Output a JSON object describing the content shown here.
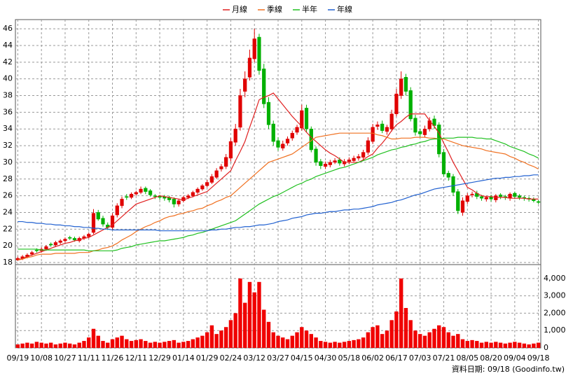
{
  "chart_data": [
    {
      "type": "candlestick",
      "up_color": "#e00000",
      "down_color": "#00b000",
      "grid": true,
      "ylim": [
        17.75,
        47.1
      ],
      "yticks": [
        18,
        20,
        22,
        24,
        26,
        28,
        30,
        32,
        34,
        36,
        38,
        40,
        42,
        44,
        46
      ],
      "open": [
        18.3,
        18.5,
        18.7,
        19.0,
        19.5,
        19.4,
        19.6,
        20.2,
        20.1,
        20.4,
        20.6,
        21.0,
        20.9,
        20.6,
        20.9,
        21.1,
        21.6,
        24.0,
        23.3,
        22.5,
        22.2,
        23.7,
        24.8,
        25.9,
        25.8,
        26.2,
        26.4,
        26.9,
        26.6,
        26.0,
        25.9,
        25.9,
        25.8,
        25.6,
        25.0,
        25.4,
        25.8,
        26.0,
        26.4,
        26.8,
        27.2,
        27.6,
        28.2,
        29.2,
        29.5,
        30.5,
        32.4,
        34.2,
        38.5,
        40.2,
        42.4,
        45.0,
        41.2,
        37.2,
        34.6,
        32.6,
        31.7,
        32.3,
        32.9,
        33.6,
        34.1,
        36.5,
        34.0,
        31.6,
        30.1,
        29.5,
        29.7,
        30.0,
        30.3,
        29.8,
        30.1,
        30.2,
        30.5,
        30.6,
        31.2,
        32.5,
        34.3,
        34.6,
        33.7,
        34.0,
        35.8,
        38.0,
        40.2,
        38.6,
        35.3,
        33.7,
        33.3,
        34.0,
        35.2,
        34.5,
        31.2,
        28.7,
        28.3,
        26.5,
        24.0,
        25.3,
        26.1,
        26.3,
        25.9,
        25.6,
        25.9,
        25.5,
        26.1,
        25.9,
        25.7,
        26.3,
        26.0,
        25.8,
        25.7,
        25.6,
        25.3
      ],
      "high": [
        18.7,
        18.9,
        19.1,
        19.4,
        19.7,
        19.8,
        20.1,
        20.4,
        20.6,
        20.8,
        21.0,
        21.2,
        21.1,
        21.1,
        21.3,
        21.6,
        24.4,
        24.3,
        23.6,
        22.8,
        23.9,
        25.1,
        25.9,
        26.2,
        26.4,
        26.6,
        27.1,
        27.1,
        26.8,
        26.2,
        26.1,
        26.1,
        26.0,
        25.8,
        25.6,
        26.0,
        26.2,
        26.6,
        27.0,
        27.4,
        27.9,
        28.6,
        29.3,
        29.8,
        31.0,
        32.9,
        34.6,
        38.8,
        40.9,
        43.5,
        46.0,
        45.4,
        41.8,
        37.8,
        35.0,
        33.0,
        32.6,
        33.1,
        33.8,
        34.5,
        36.9,
        36.9,
        34.3,
        31.9,
        30.4,
        30.1,
        30.3,
        30.5,
        30.6,
        30.4,
        30.6,
        30.8,
        31.0,
        31.5,
        33.0,
        34.6,
        34.9,
        35.0,
        34.5,
        36.3,
        38.8,
        40.9,
        40.6,
        39.0,
        35.7,
        34.0,
        34.4,
        35.4,
        35.6,
        34.8,
        31.6,
        29.0,
        28.6,
        26.8,
        25.8,
        26.3,
        26.5,
        26.6,
        26.1,
        26.0,
        26.1,
        26.2,
        26.3,
        26.1,
        26.4,
        26.5,
        26.2,
        26.0,
        25.9,
        25.8,
        25.5
      ],
      "low": [
        18.2,
        18.3,
        18.5,
        18.8,
        19.2,
        19.2,
        19.4,
        19.9,
        19.9,
        20.2,
        20.4,
        20.7,
        20.5,
        20.4,
        20.7,
        20.9,
        21.4,
        23.0,
        22.3,
        21.9,
        21.9,
        23.4,
        24.5,
        25.5,
        25.6,
        26.0,
        26.2,
        26.2,
        25.9,
        25.6,
        25.5,
        25.4,
        25.2,
        24.6,
        24.7,
        25.2,
        25.6,
        25.8,
        26.2,
        26.6,
        27.0,
        27.4,
        28.0,
        28.9,
        29.2,
        30.1,
        32.0,
        33.8,
        37.8,
        39.8,
        42.0,
        40.5,
        36.5,
        34.0,
        32.0,
        31.4,
        31.4,
        32.0,
        32.6,
        33.3,
        33.8,
        33.6,
        31.2,
        29.6,
        29.2,
        29.2,
        29.4,
        29.8,
        29.6,
        29.5,
        29.8,
        30.0,
        30.2,
        30.3,
        30.9,
        32.2,
        33.9,
        33.5,
        33.3,
        33.7,
        35.5,
        37.6,
        38.0,
        34.9,
        33.2,
        33.0,
        33.0,
        33.7,
        34.0,
        30.6,
        28.3,
        27.8,
        26.0,
        23.8,
        23.6,
        25.0,
        25.8,
        25.6,
        25.4,
        25.3,
        25.3,
        25.2,
        25.6,
        25.5,
        25.4,
        25.6,
        25.5,
        25.4,
        25.3,
        25.2,
        25.0
      ],
      "close": [
        18.5,
        18.7,
        18.9,
        19.2,
        19.4,
        19.6,
        19.9,
        20.1,
        20.4,
        20.6,
        20.8,
        20.9,
        20.7,
        20.9,
        21.1,
        21.4,
        23.9,
        23.2,
        22.6,
        22.2,
        23.6,
        24.8,
        25.6,
        25.8,
        26.2,
        26.4,
        26.8,
        26.5,
        26.1,
        25.9,
        25.8,
        25.7,
        25.5,
        25.0,
        25.4,
        25.8,
        26.0,
        26.4,
        26.8,
        27.2,
        27.6,
        28.3,
        29.0,
        29.5,
        30.6,
        32.5,
        34.0,
        38.0,
        40.0,
        42.5,
        44.8,
        41.0,
        37.0,
        34.5,
        32.5,
        31.8,
        32.2,
        32.8,
        33.5,
        34.2,
        36.2,
        34.0,
        31.5,
        30.0,
        29.6,
        29.8,
        30.0,
        30.2,
        29.9,
        30.1,
        30.3,
        30.5,
        30.7,
        31.2,
        32.6,
        34.2,
        34.5,
        33.8,
        34.2,
        35.8,
        38.2,
        40.0,
        38.5,
        35.2,
        33.6,
        33.4,
        34.0,
        35.0,
        34.4,
        31.0,
        28.6,
        28.2,
        26.4,
        24.2,
        25.4,
        26.0,
        26.2,
        25.9,
        25.7,
        25.8,
        25.6,
        26.0,
        25.9,
        25.8,
        26.2,
        25.9,
        25.8,
        25.7,
        25.6,
        25.4,
        25.2
      ],
      "series": [
        {
          "name": "月線",
          "color": "#e02020",
          "values": [
            18.3,
            18.5,
            18.7,
            18.9,
            19.1,
            19.3,
            19.5,
            19.7,
            19.9,
            20.1,
            20.3,
            20.4,
            20.6,
            20.7,
            20.9,
            21.0,
            21.3,
            21.6,
            21.9,
            22.2,
            22.5,
            23.0,
            23.5,
            24.0,
            24.5,
            25.0,
            25.2,
            25.4,
            25.6,
            25.8,
            26.0,
            25.9,
            25.8,
            25.7,
            25.6,
            25.5,
            25.7,
            25.9,
            26.1,
            26.3,
            26.5,
            27.0,
            27.5,
            28.0,
            28.5,
            29.0,
            30.2,
            31.3,
            32.5,
            34.2,
            35.8,
            37.5,
            37.8,
            38.0,
            38.3,
            37.6,
            36.9,
            36.2,
            35.5,
            34.9,
            34.3,
            33.6,
            33.0,
            32.5,
            32.0,
            31.5,
            31.1,
            30.8,
            30.4,
            30.0,
            30.0,
            30.0,
            30.0,
            30.3,
            30.7,
            31.0,
            31.7,
            32.3,
            33.0,
            33.8,
            34.5,
            34.9,
            35.4,
            35.8,
            35.8,
            35.8,
            35.8,
            35.0,
            34.3,
            33.5,
            32.3,
            31.2,
            30.0,
            29.0,
            28.0,
            27.0,
            26.7,
            26.3,
            26.0,
            25.9,
            25.9,
            25.8,
            25.8,
            25.8,
            25.7,
            25.7,
            25.7,
            25.7,
            25.6,
            25.6,
            25.6
          ]
        },
        {
          "name": "季線",
          "color": "#f07020",
          "values": [
            18.3,
            18.4,
            18.6,
            18.7,
            18.9,
            19.0,
            19.0,
            19.0,
            19.1,
            19.1,
            19.1,
            19.1,
            19.1,
            19.2,
            19.2,
            19.2,
            19.4,
            19.5,
            19.7,
            19.8,
            20.0,
            20.3,
            20.7,
            21.0,
            21.3,
            21.7,
            22.0,
            22.3,
            22.5,
            22.8,
            23.0,
            23.3,
            23.5,
            23.6,
            23.8,
            23.9,
            24.1,
            24.2,
            24.4,
            24.5,
            24.8,
            25.0,
            25.3,
            25.5,
            25.8,
            26.0,
            26.5,
            27.0,
            27.5,
            28.0,
            28.5,
            29.0,
            29.5,
            30.0,
            30.2,
            30.4,
            30.6,
            30.8,
            31.0,
            31.4,
            31.8,
            32.2,
            32.6,
            33.0,
            33.1,
            33.2,
            33.3,
            33.4,
            33.5,
            33.5,
            33.5,
            33.5,
            33.5,
            33.5,
            33.5,
            33.5,
            33.3,
            33.2,
            33.0,
            32.8,
            32.8,
            32.9,
            32.9,
            32.9,
            33.0,
            33.0,
            33.0,
            32.9,
            32.9,
            32.8,
            32.8,
            32.6,
            32.4,
            32.2,
            32.0,
            31.9,
            31.8,
            31.7,
            31.6,
            31.4,
            31.3,
            31.2,
            31.1,
            31.0,
            30.7,
            30.5,
            30.2,
            30.0,
            29.7,
            29.5,
            29.2
          ]
        },
        {
          "name": "半年",
          "color": "#20c020",
          "values": [
            19.6,
            19.6,
            19.6,
            19.6,
            19.6,
            19.5,
            19.5,
            19.5,
            19.5,
            19.5,
            19.5,
            19.5,
            19.5,
            19.5,
            19.5,
            19.4,
            19.4,
            19.4,
            19.4,
            19.4,
            19.4,
            19.5,
            19.7,
            19.8,
            19.9,
            20.1,
            20.2,
            20.3,
            20.4,
            20.5,
            20.6,
            20.6,
            20.7,
            20.8,
            20.9,
            21.0,
            21.2,
            21.3,
            21.5,
            21.6,
            21.8,
            22.0,
            22.2,
            22.4,
            22.6,
            22.8,
            23.0,
            23.4,
            23.8,
            24.2,
            24.6,
            25.0,
            25.3,
            25.6,
            25.9,
            26.1,
            26.4,
            26.7,
            27.0,
            27.3,
            27.5,
            27.8,
            28.0,
            28.3,
            28.5,
            28.7,
            28.9,
            29.1,
            29.3,
            29.4,
            29.6,
            29.8,
            30.0,
            30.2,
            30.4,
            30.6,
            30.9,
            31.1,
            31.3,
            31.5,
            31.6,
            31.8,
            31.9,
            32.1,
            32.2,
            32.4,
            32.5,
            32.7,
            32.8,
            32.8,
            32.9,
            32.9,
            32.9,
            33.0,
            33.0,
            33.0,
            33.0,
            32.9,
            32.9,
            32.8,
            32.8,
            32.6,
            32.4,
            32.2,
            31.9,
            31.7,
            31.5,
            31.3,
            31.0,
            30.8,
            30.5
          ]
        },
        {
          "name": "年線",
          "color": "#2060d0",
          "values": [
            22.9,
            22.9,
            22.8,
            22.8,
            22.7,
            22.7,
            22.6,
            22.6,
            22.5,
            22.5,
            22.4,
            22.4,
            22.3,
            22.3,
            22.2,
            22.2,
            22.1,
            22.1,
            22.0,
            22.0,
            21.9,
            21.9,
            21.9,
            21.9,
            21.9,
            21.9,
            21.9,
            21.9,
            21.9,
            21.9,
            21.8,
            21.8,
            21.8,
            21.8,
            21.8,
            21.8,
            21.8,
            21.8,
            21.8,
            21.8,
            21.8,
            21.9,
            21.9,
            22.0,
            22.0,
            22.1,
            22.2,
            22.2,
            22.3,
            22.3,
            22.4,
            22.5,
            22.5,
            22.6,
            22.7,
            22.9,
            23.0,
            23.1,
            23.3,
            23.4,
            23.5,
            23.7,
            23.8,
            23.9,
            23.9,
            24.0,
            24.1,
            24.1,
            24.2,
            24.3,
            24.3,
            24.4,
            24.4,
            24.5,
            24.6,
            24.7,
            24.9,
            25.0,
            25.1,
            25.2,
            25.4,
            25.5,
            25.7,
            25.9,
            26.1,
            26.2,
            26.4,
            26.6,
            26.8,
            26.9,
            27.0,
            27.1,
            27.2,
            27.3,
            27.4,
            27.5,
            27.6,
            27.7,
            27.8,
            27.9,
            28.0,
            28.1,
            28.1,
            28.2,
            28.2,
            28.3,
            28.3,
            28.4,
            28.4,
            28.5,
            28.5
          ]
        }
      ]
    },
    {
      "type": "bar",
      "color": "#f00000",
      "grid": true,
      "ylim": [
        0,
        4800
      ],
      "yticks": [
        0,
        {
          "value": 1000,
          "label": "1,000"
        },
        {
          "value": 2000,
          "label": "2,000"
        },
        {
          "value": 3000,
          "label": "3,000"
        },
        {
          "value": 4000,
          "label": "4,000"
        }
      ],
      "categories": [
        "09/19",
        null,
        null,
        null,
        null,
        "10/08",
        null,
        null,
        null,
        null,
        "10/27",
        null,
        null,
        null,
        null,
        "11/11",
        null,
        null,
        null,
        null,
        "11/26",
        null,
        null,
        null,
        null,
        "12/11",
        null,
        null,
        null,
        null,
        "12/29",
        null,
        null,
        null,
        null,
        "01/14",
        null,
        null,
        null,
        null,
        "01/29",
        null,
        null,
        null,
        null,
        "02/24",
        null,
        null,
        null,
        null,
        "03/12",
        null,
        null,
        null,
        null,
        "03/27",
        null,
        null,
        null,
        null,
        "04/15",
        null,
        null,
        null,
        null,
        "04/30",
        null,
        null,
        null,
        null,
        "05/18",
        null,
        null,
        null,
        null,
        "06/02",
        null,
        null,
        null,
        null,
        "06/17",
        null,
        null,
        null,
        null,
        "07/03",
        null,
        null,
        null,
        null,
        "07/21",
        null,
        null,
        null,
        null,
        "08/05",
        null,
        null,
        null,
        null,
        "08/20",
        null,
        null,
        null,
        null,
        "09/04",
        null,
        null,
        null,
        null,
        "09/18"
      ],
      "values": [
        200,
        250,
        300,
        250,
        350,
        300,
        250,
        300,
        200,
        250,
        300,
        250,
        200,
        300,
        400,
        600,
        1100,
        700,
        400,
        300,
        500,
        600,
        700,
        500,
        400,
        450,
        500,
        400,
        300,
        350,
        300,
        350,
        400,
        450,
        300,
        350,
        400,
        500,
        600,
        700,
        900,
        1300,
        800,
        1000,
        1200,
        1600,
        2000,
        4000,
        2600,
        3800,
        3200,
        3800,
        2200,
        1500,
        900,
        700,
        600,
        500,
        700,
        900,
        1200,
        1000,
        800,
        600,
        400,
        350,
        300,
        350,
        300,
        350,
        400,
        450,
        500,
        600,
        900,
        1200,
        1300,
        800,
        1000,
        1600,
        2100,
        4000,
        2300,
        1600,
        1000,
        800,
        700,
        900,
        1100,
        1300,
        1200,
        900,
        700,
        800,
        500,
        400,
        450,
        400,
        300,
        350,
        300,
        350,
        300,
        250,
        300,
        350,
        300,
        250,
        200,
        250,
        300
      ],
      "footer": "資料日期: 09/18 (Goodinfo.tw)"
    }
  ]
}
